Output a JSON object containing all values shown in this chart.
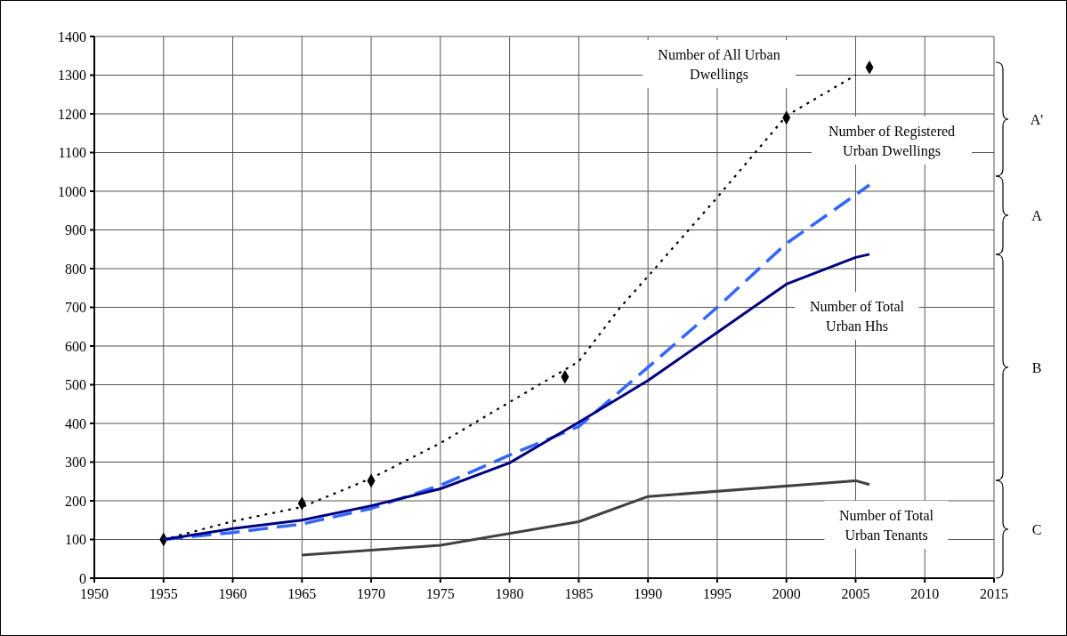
{
  "chart_data": {
    "type": "line",
    "xlim": [
      1950,
      2015
    ],
    "xticks": [
      1950,
      1955,
      1960,
      1965,
      1970,
      1975,
      1980,
      1985,
      1990,
      1995,
      2000,
      2005,
      2010,
      2015
    ],
    "ylim": [
      0,
      1400
    ],
    "yticks": [
      0,
      100,
      200,
      300,
      400,
      500,
      600,
      700,
      800,
      900,
      1000,
      1100,
      1200,
      1300,
      1400
    ],
    "grid": true,
    "series": [
      {
        "type": "scatter",
        "marker": "diamond",
        "color": "#000000",
        "x": [
          1955,
          1965,
          1970,
          1984,
          2000,
          2006
        ],
        "values": [
          100,
          193,
          252,
          520,
          1190,
          1320
        ]
      },
      {
        "type": "line",
        "line_style": "dotted",
        "color": "#000000",
        "x": [
          1955,
          1960,
          1965,
          1970,
          1975,
          1980,
          1985,
          1988,
          1990,
          1995,
          2000,
          2005
        ],
        "values": [
          100,
          147,
          184,
          258,
          349,
          455,
          560,
          700,
          780,
          984,
          1195,
          1300
        ]
      },
      {
        "type": "line",
        "line_style": "dashed",
        "color": "#3366ff",
        "x": [
          1955,
          1960,
          1965,
          1970,
          1975,
          1980,
          1985,
          1990,
          1995,
          2000,
          2006
        ],
        "values": [
          100,
          118,
          140,
          180,
          240,
          318,
          392,
          545,
          700,
          865,
          1016
        ]
      },
      {
        "type": "line",
        "line_style": "solid",
        "color": "#000080",
        "x": [
          1955,
          1960,
          1965,
          1970,
          1975,
          1980,
          1985,
          1990,
          1995,
          2000,
          2005,
          2006
        ],
        "values": [
          100,
          128,
          150,
          187,
          231,
          298,
          403,
          511,
          635,
          760,
          829,
          837
        ]
      },
      {
        "type": "line",
        "line_style": "solid",
        "color": "#404040",
        "x": [
          1965,
          1975,
          1985,
          1990,
          2005,
          2006
        ],
        "values": [
          60,
          85,
          146,
          211,
          252,
          242
        ]
      }
    ],
    "annotations": [
      "Number of All Urban\nDwellings",
      "Number of Registered\nUrban Dwellings",
      "Number of Total\nUrban Hhs",
      "Number of Total\nUrban Tenants",
      "A'",
      "A",
      "B",
      "C"
    ]
  }
}
